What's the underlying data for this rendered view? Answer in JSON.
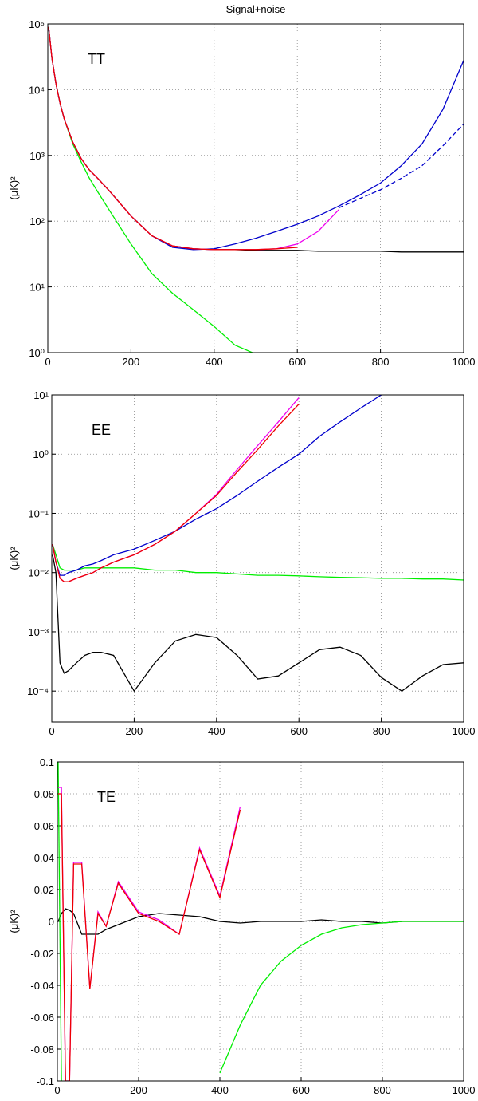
{
  "chart_data": [
    {
      "type": "line",
      "title": "Signal+noise",
      "annotation": "TT",
      "ylabel": "(μK)²",
      "log_y": true,
      "grid": true,
      "x": [
        2,
        10,
        20,
        30,
        40,
        60,
        80,
        100,
        120,
        150,
        200,
        250,
        300,
        350,
        400,
        450,
        500,
        550,
        600,
        650,
        700,
        750,
        800,
        850,
        900,
        950,
        1000
      ],
      "xlim": [
        0,
        1000
      ],
      "xticks": [
        0,
        200,
        400,
        600,
        800,
        1000
      ],
      "ylim": [
        1,
        100000
      ],
      "yticks": [
        {
          "value": 1,
          "label": "10⁰"
        },
        {
          "value": 10,
          "label": "10¹"
        },
        {
          "value": 100,
          "label": "10²"
        },
        {
          "value": 1000,
          "label": "10³"
        },
        {
          "value": 10000,
          "label": "10⁴"
        },
        {
          "value": 100000,
          "label": "10⁵"
        }
      ],
      "series": [
        {
          "color": "#000000",
          "values": [
            90000,
            30000,
            12000,
            6000,
            3500,
            1600,
            900,
            600,
            450,
            280,
            120,
            60,
            42,
            38,
            37,
            37,
            36,
            36,
            36,
            35,
            35,
            35,
            35,
            34,
            34,
            34,
            34
          ]
        },
        {
          "color": "#00ee00",
          "values": [
            90000,
            30000,
            12000,
            6000,
            3500,
            1500,
            800,
            450,
            280,
            140,
            45,
            16,
            8,
            4.5,
            2.5,
            1.3,
            0.95,
            null,
            null,
            null,
            null,
            null,
            null,
            null,
            null,
            null,
            null
          ]
        },
        {
          "color": "#0000cc",
          "values": [
            90000,
            30000,
            12000,
            6000,
            3500,
            1600,
            900,
            600,
            450,
            280,
            120,
            60,
            40,
            37,
            38,
            45,
            55,
            70,
            90,
            120,
            170,
            250,
            380,
            700,
            1500,
            5000,
            28000
          ]
        },
        {
          "color": "#0000cc",
          "line_style": "dashed",
          "values": [
            null,
            null,
            null,
            null,
            null,
            null,
            null,
            null,
            null,
            null,
            null,
            null,
            null,
            null,
            null,
            null,
            null,
            null,
            null,
            null,
            160,
            220,
            300,
            450,
            700,
            1400,
            3000
          ]
        },
        {
          "color": "#ee00ee",
          "values": [
            90000,
            30000,
            12000,
            6000,
            3500,
            1600,
            900,
            600,
            450,
            280,
            120,
            60,
            42,
            38,
            37,
            37,
            37,
            38,
            45,
            70,
            150,
            null,
            null,
            null,
            null,
            null,
            null
          ]
        },
        {
          "color": "#ee0000",
          "values": [
            90000,
            30000,
            12000,
            6000,
            3500,
            1600,
            900,
            600,
            450,
            280,
            120,
            60,
            42,
            38,
            37,
            37,
            37,
            38,
            40,
            null,
            null,
            null,
            null,
            null,
            null,
            null,
            null
          ]
        }
      ]
    },
    {
      "type": "line",
      "annotation": "EE",
      "ylabel": "(μK)²",
      "log_y": true,
      "grid": true,
      "x": [
        2,
        10,
        20,
        30,
        40,
        60,
        80,
        100,
        120,
        150,
        200,
        250,
        300,
        350,
        400,
        450,
        500,
        550,
        600,
        650,
        700,
        750,
        800,
        850,
        900,
        950,
        1000
      ],
      "xlim": [
        0,
        1000
      ],
      "xticks": [
        0,
        200,
        400,
        600,
        800,
        1000
      ],
      "ylim": [
        3e-05,
        10
      ],
      "yticks": [
        {
          "value": 0.0001,
          "label": "10⁻⁴"
        },
        {
          "value": 0.001,
          "label": "10⁻³"
        },
        {
          "value": 0.01,
          "label": "10⁻²"
        },
        {
          "value": 0.1,
          "label": "10⁻¹"
        },
        {
          "value": 1,
          "label": "10⁰"
        },
        {
          "value": 10,
          "label": "10¹"
        }
      ],
      "series": [
        {
          "color": "#000000",
          "values": [
            0.02,
            0.01,
            0.0003,
            0.0002,
            0.00022,
            0.0003,
            0.0004,
            0.00045,
            0.00045,
            0.0004,
            0.0001,
            0.0003,
            0.0007,
            0.0009,
            0.0008,
            0.0004,
            0.00016,
            0.00018,
            0.0003,
            0.0005,
            0.00055,
            0.0004,
            0.00017,
            0.0001,
            0.00018,
            0.00028,
            0.0003
          ]
        },
        {
          "color": "#00ee00",
          "values": [
            0.03,
            0.02,
            0.012,
            0.011,
            0.011,
            0.011,
            0.012,
            0.012,
            0.012,
            0.012,
            0.012,
            0.011,
            0.011,
            0.01,
            0.01,
            0.0095,
            0.009,
            0.009,
            0.0088,
            0.0085,
            0.0083,
            0.0082,
            0.008,
            0.008,
            0.0078,
            0.0078,
            0.0075
          ]
        },
        {
          "color": "#0000cc",
          "values": [
            0.03,
            0.015,
            0.009,
            0.009,
            0.01,
            0.011,
            0.013,
            0.014,
            0.016,
            0.02,
            0.025,
            0.035,
            0.05,
            0.08,
            0.12,
            0.2,
            0.35,
            0.6,
            1,
            2,
            3.5,
            6,
            10,
            null,
            null,
            null,
            null
          ]
        },
        {
          "color": "#ee00ee",
          "values": [
            0.03,
            0.015,
            0.008,
            0.007,
            0.007,
            0.008,
            0.009,
            0.01,
            0.012,
            0.015,
            0.02,
            0.03,
            0.05,
            0.1,
            0.21,
            0.55,
            1.4,
            3.5,
            9,
            null,
            null,
            null,
            null,
            null,
            null,
            null,
            null
          ]
        },
        {
          "color": "#ee0000",
          "values": [
            0.03,
            0.015,
            0.008,
            0.007,
            0.007,
            0.008,
            0.009,
            0.01,
            0.012,
            0.015,
            0.02,
            0.03,
            0.05,
            0.1,
            0.2,
            0.5,
            1.2,
            3,
            7,
            null,
            null,
            null,
            null,
            null,
            null,
            null,
            null
          ]
        }
      ]
    },
    {
      "type": "line",
      "annotation": "TE",
      "ylabel": "(μK)²",
      "grid": true,
      "x": [
        2,
        10,
        20,
        30,
        40,
        60,
        80,
        100,
        120,
        150,
        200,
        250,
        300,
        350,
        400,
        450,
        500,
        550,
        600,
        650,
        700,
        750,
        800,
        850,
        900,
        950,
        1000
      ],
      "xlim": [
        0,
        1000
      ],
      "xticks": [
        0,
        200,
        400,
        600,
        800,
        1000
      ],
      "ylim": [
        -0.1,
        0.1
      ],
      "yticks": [
        -0.1,
        -0.08,
        -0.06,
        -0.04,
        -0.02,
        0,
        0.02,
        0.04,
        0.06,
        0.08,
        0.1
      ],
      "series": [
        {
          "color": "#000000",
          "values": [
            0,
            0.005,
            0.008,
            0.007,
            0.005,
            -0.008,
            -0.008,
            -0.008,
            -0.005,
            -0.002,
            0.003,
            0.005,
            0.004,
            0.003,
            0,
            -0.001,
            0,
            0,
            0,
            0.001,
            0,
            0,
            -0.001,
            0,
            0,
            0,
            0
          ]
        },
        {
          "color": "#00ee00",
          "values": [
            0.1,
            -0.1,
            null,
            null,
            null,
            null,
            null,
            null,
            null,
            null,
            null,
            null,
            null,
            null,
            -0.095,
            -0.065,
            -0.04,
            -0.025,
            -0.015,
            -0.008,
            -0.004,
            -0.002,
            -0.001,
            0,
            0,
            0,
            0
          ]
        },
        {
          "color": "#ee00ee",
          "values": [
            0.084,
            0.084,
            -0.1,
            -0.1,
            0.037,
            0.037,
            -0.042,
            0.006,
            -0.003,
            0.025,
            0.006,
            0.001,
            -0.008,
            0.046,
            0.016,
            0.072,
            null,
            null,
            null,
            null,
            null,
            null,
            null,
            null,
            null,
            null,
            null
          ]
        },
        {
          "color": "#ee0000",
          "values": [
            0.08,
            0.08,
            -0.1,
            -0.1,
            0.036,
            0.036,
            -0.042,
            0.005,
            -0.003,
            0.024,
            0.005,
            0,
            -0.008,
            0.045,
            0.015,
            0.07,
            null,
            null,
            null,
            null,
            null,
            null,
            null,
            null,
            null,
            null,
            null
          ]
        }
      ]
    }
  ]
}
